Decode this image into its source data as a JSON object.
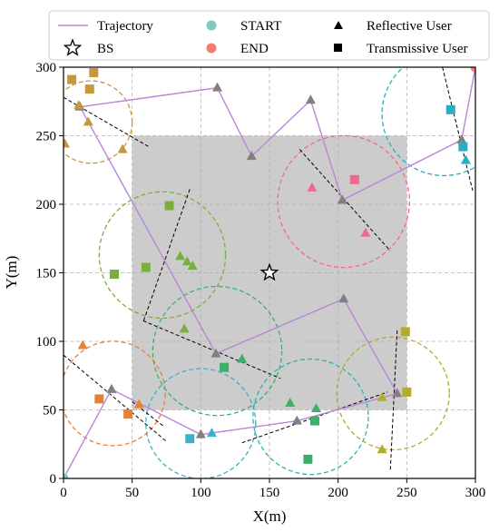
{
  "chart_data": {
    "type": "scatter",
    "title": "",
    "xlabel": "X(m)",
    "ylabel": "Y(m)",
    "xlim": [
      0,
      300
    ],
    "ylim": [
      0,
      300
    ],
    "x_ticks": [
      "0",
      "50",
      "100",
      "150",
      "200",
      "250",
      "300"
    ],
    "y_ticks": [
      "0",
      "50",
      "100",
      "150",
      "200",
      "250",
      "300"
    ],
    "grid": true,
    "legend_position": "top",
    "shaded_region": {
      "x": [
        50,
        250
      ],
      "y": [
        50,
        250
      ],
      "color": "#cccccc"
    },
    "legend": {
      "trajectory": "Trajectory",
      "start": "START",
      "reflective": "Reflective User",
      "bs": "BS",
      "end": "END",
      "transmissive": "Transmissive User"
    },
    "colors": {
      "trajectory": "#b987d9",
      "start": "#80c8c0",
      "end": "#f07c74",
      "bs_face": "#ffffff",
      "region": "#cccccc"
    },
    "bs": {
      "x": 150,
      "y": 150
    },
    "start": {
      "x": 0,
      "y": 0
    },
    "end": {
      "x": 300,
      "y": 300
    },
    "trajectory": [
      [
        0,
        0
      ],
      [
        35,
        65
      ],
      [
        100,
        32
      ],
      [
        170,
        42
      ],
      [
        243,
        62
      ],
      [
        204,
        131
      ],
      [
        111,
        91
      ],
      [
        12,
        271
      ],
      [
        112,
        285
      ],
      [
        137,
        235
      ],
      [
        180,
        276
      ],
      [
        203,
        203
      ],
      [
        290,
        247
      ],
      [
        300,
        300
      ]
    ],
    "clusters": [
      {
        "name": "cluster-1",
        "color": "#c9963a",
        "center": [
          20,
          260
        ],
        "radius": 30,
        "line": [
          [
            0,
            278
          ],
          [
            62,
            242
          ]
        ],
        "reflective": [
          [
            11,
            272
          ],
          [
            18,
            260
          ],
          [
            43,
            240
          ],
          [
            1,
            244
          ]
        ],
        "transmissive": [
          [
            6,
            291
          ],
          [
            22,
            296
          ],
          [
            19,
            284
          ]
        ]
      },
      {
        "name": "cluster-2",
        "color": "#7aaf3c",
        "center": [
          72,
          163
        ],
        "radius": 46,
        "line": [
          [
            92,
            211
          ],
          [
            58,
            114
          ]
        ],
        "reflective": [
          [
            85,
            162
          ],
          [
            90,
            158
          ],
          [
            94,
            155
          ],
          [
            88,
            109
          ]
        ],
        "transmissive": [
          [
            77,
            199
          ],
          [
            60,
            154
          ],
          [
            37,
            149
          ]
        ]
      },
      {
        "name": "cluster-3",
        "color": "#e58239",
        "center": [
          36,
          62
        ],
        "radius": 38,
        "line": [
          [
            0,
            90
          ],
          [
            75,
            27
          ]
        ],
        "reflective": [
          [
            14,
            97
          ],
          [
            55,
            54
          ]
        ],
        "transmissive": [
          [
            26,
            58
          ],
          [
            47,
            47
          ]
        ]
      },
      {
        "name": "cluster-4",
        "color": "#3eb0c9",
        "center": [
          100,
          40
        ],
        "radius": 40,
        "line": [
          [
            58,
            115
          ],
          [
            158,
            73
          ]
        ],
        "reflective": [
          [
            108,
            33
          ]
        ],
        "transmissive": [
          [
            92,
            29
          ]
        ]
      },
      {
        "name": "cluster-5",
        "color": "#3fae6a",
        "center": [
          112,
          93
        ],
        "radius": 47,
        "line": [
          [
            50,
            56
          ],
          [
            73,
            38
          ]
        ],
        "reflective": [
          [
            130,
            87
          ],
          [
            165,
            55
          ],
          [
            184,
            51
          ]
        ],
        "transmissive": [
          [
            117,
            81
          ],
          [
            183,
            42
          ],
          [
            178,
            14
          ]
        ]
      },
      {
        "name": "cluster-6",
        "color": "#2ab3b3",
        "center": [
          180,
          45
        ],
        "radius": 42,
        "line": [
          [
            130,
            26
          ],
          [
            236,
            63
          ]
        ],
        "reflective": [],
        "transmissive": []
      },
      {
        "name": "cluster-7",
        "color": "#b3ad2c",
        "center": [
          240,
          62
        ],
        "radius": 41,
        "line": [
          [
            243,
            108
          ],
          [
            238,
            5
          ]
        ],
        "reflective": [
          [
            232,
            59
          ],
          [
            232,
            21
          ]
        ],
        "transmissive": [
          [
            249,
            107
          ],
          [
            250,
            63
          ]
        ]
      },
      {
        "name": "cluster-8",
        "color": "#f06a8a",
        "center": [
          204,
          202
        ],
        "radius": 48,
        "line": [
          [
            172,
            240
          ],
          [
            238,
            166
          ]
        ],
        "reflective": [
          [
            181,
            212
          ],
          [
            220,
            179
          ]
        ],
        "transmissive": [
          [
            212,
            218
          ]
        ]
      },
      {
        "name": "cluster-9",
        "color": "#27aec5",
        "center": [
          277,
          266
        ],
        "radius": 45,
        "line": [
          [
            276,
            300
          ],
          [
            298,
            210
          ]
        ],
        "reflective": [
          [
            293,
            232
          ]
        ],
        "transmissive": [
          [
            282,
            269
          ],
          [
            291,
            242
          ]
        ]
      }
    ]
  }
}
